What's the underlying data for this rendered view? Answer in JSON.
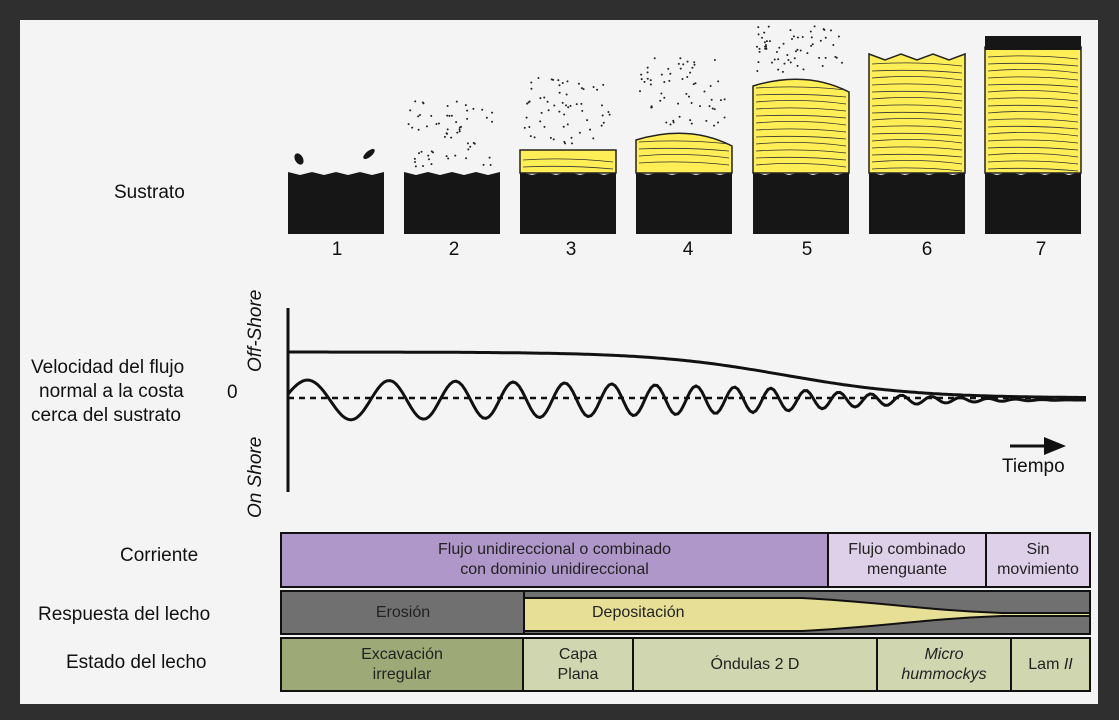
{
  "labels": {
    "sustrato": "Sustrato",
    "velocidad_1": "Velocidad del flujo",
    "velocidad_2": "normal a la costa",
    "velocidad_3": "cerca del sustrato",
    "zero": "0",
    "off_shore": "Off-Shore",
    "on_shore": "On Shore",
    "tiempo": "Tiempo",
    "corriente": "Corriente",
    "respuesta": "Respuesta del lecho",
    "estado": "Estado del lecho"
  },
  "stages": [
    "1",
    "2",
    "3",
    "4",
    "5",
    "6",
    "7"
  ],
  "corriente": [
    {
      "line1": "Flujo unidireccional o combinado",
      "line2": "con dominio unidireccional"
    },
    {
      "line1": "Flujo combinado",
      "line2": "menguante"
    },
    {
      "line1": "Sin",
      "line2": "movimiento"
    }
  ],
  "respuesta": {
    "erosion": "Erosión",
    "deposicion": "Depositación"
  },
  "estado": [
    {
      "line1": "Excavación",
      "line2": "irregular"
    },
    {
      "line1": "Capa",
      "line2": "Plana"
    },
    {
      "line1": "Óndulas 2 D",
      "line2": ""
    },
    {
      "line1": "Micro",
      "line2": "hummockys"
    },
    {
      "line1": "Lam",
      "line2": "II"
    }
  ],
  "colors": {
    "substrate": "#161616",
    "sand": "#ffee55",
    "corriente": "#b097c9",
    "corriente_light": "#dfd0ea",
    "erosion": "#707070",
    "deposicion": "#e8df96",
    "estado_dark": "#9ea978",
    "estado_light": "#cfd6b0"
  }
}
